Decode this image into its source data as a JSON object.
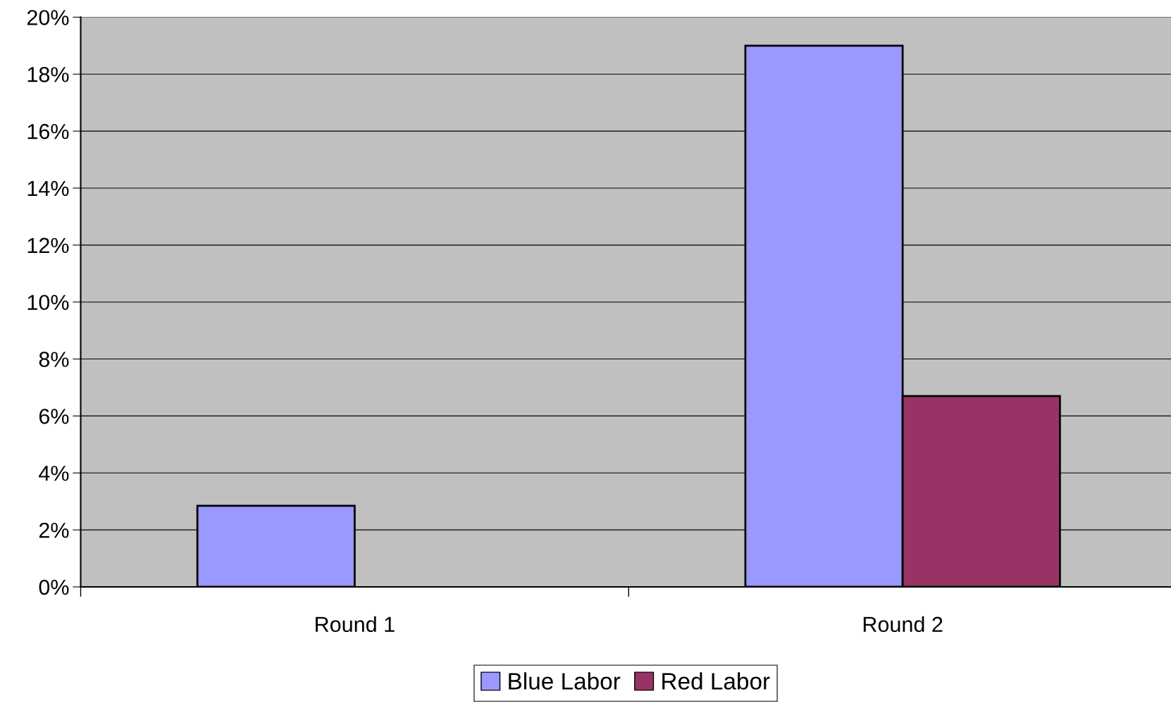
{
  "chart_data": {
    "type": "bar",
    "categories": [
      "Round 1",
      "Round 2"
    ],
    "series": [
      {
        "name": "Blue Labor",
        "color": "#9999ff",
        "values": [
          2.85,
          19.0
        ]
      },
      {
        "name": "Red Labor",
        "color": "#993366",
        "values": [
          null,
          6.7
        ]
      }
    ],
    "ylim": [
      0,
      20
    ],
    "yticks": [
      {
        "value": 0,
        "label": "0%"
      },
      {
        "value": 2,
        "label": "2%"
      },
      {
        "value": 4,
        "label": "4%"
      },
      {
        "value": 6,
        "label": "6%"
      },
      {
        "value": 8,
        "label": "8%"
      },
      {
        "value": 10,
        "label": "10%"
      },
      {
        "value": 12,
        "label": "12%"
      },
      {
        "value": 14,
        "label": "14%"
      },
      {
        "value": 16,
        "label": "16%"
      },
      {
        "value": 18,
        "label": "18%"
      },
      {
        "value": 20,
        "label": "20%"
      }
    ],
    "grid": "y",
    "legend": "bottom"
  }
}
